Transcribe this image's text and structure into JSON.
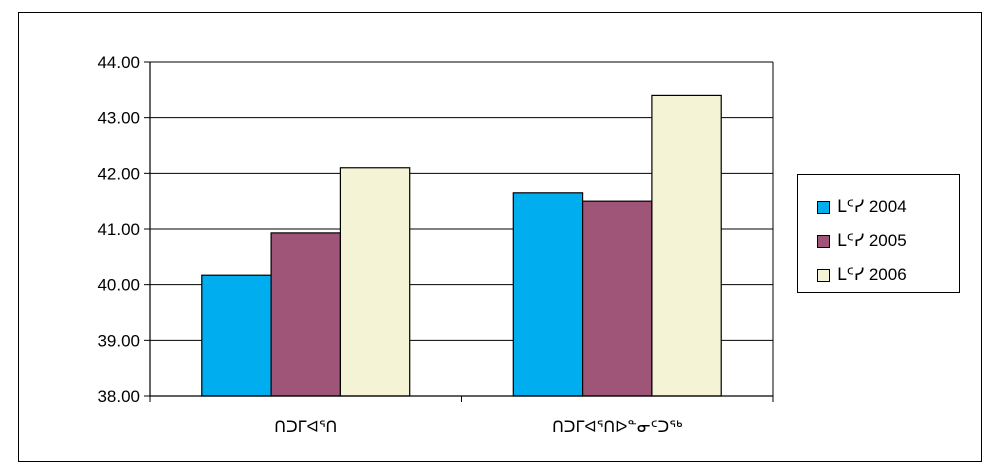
{
  "chart_data": {
    "type": "bar",
    "title": "",
    "xlabel": "",
    "ylabel": "",
    "categories": [
      "ᑎᑐᒥᐊᕐᑎ",
      "ᑎᑐᒥᐊᕐᑎᐅᓐᓂᑦᑐᖅ"
    ],
    "series": [
      {
        "name": "ᒪᑦᓯ 2004",
        "color": "#00aeef",
        "values": [
          40.17,
          41.65
        ]
      },
      {
        "name": "ᒪᑦᓯ 2005",
        "color": "#9e5578",
        "values": [
          40.93,
          41.5
        ]
      },
      {
        "name": "ᒪᑦᓯ 2006",
        "color": "#f5f3d6",
        "values": [
          42.1,
          43.4
        ]
      }
    ],
    "ylim": [
      38,
      44
    ],
    "yticks": [
      "38.00",
      "39.00",
      "40.00",
      "41.00",
      "42.00",
      "43.00",
      "44.00"
    ],
    "grid": true,
    "legend_position": "right"
  }
}
